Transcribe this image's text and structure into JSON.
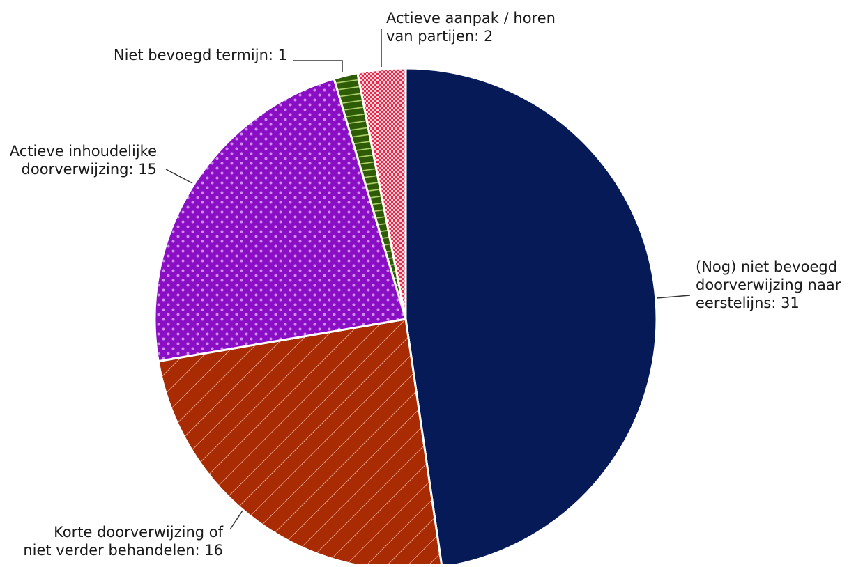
{
  "chart_data": {
    "type": "pie",
    "title": "",
    "start": "12 o'clock, clockwise",
    "slices": [
      {
        "value": 31,
        "label_lines": [
          "(Nog) niet bevoegd",
          "doorverwijzing naar",
          "eerstelijns: 31"
        ],
        "color": "#061a57",
        "pattern": "solid",
        "pattern_color": ""
      },
      {
        "value": 16,
        "label_lines": [
          "Korte doorverwijzing of",
          "niet verder behandelen: 16"
        ],
        "color": "#a82b04",
        "pattern": "diagonal-lines",
        "pattern_color": "#e8a08c"
      },
      {
        "value": 15,
        "label_lines": [
          "Actieve inhoudelijke",
          "doorverwijzing: 15"
        ],
        "color": "#8a0ec4",
        "pattern": "dots",
        "pattern_color": "#d08cf0"
      },
      {
        "value": 1,
        "label_lines": [
          "Niet bevoegd termijn: 1"
        ],
        "color": "#2e5c06",
        "pattern": "horizontal-lines",
        "pattern_color": "#b4d870"
      },
      {
        "value": 2,
        "label_lines": [
          "Actieve aanpak / horen",
          "van partijen: 2"
        ],
        "color": "#e8294a",
        "pattern": "checker",
        "pattern_color": "#ffd0d8"
      }
    ]
  }
}
